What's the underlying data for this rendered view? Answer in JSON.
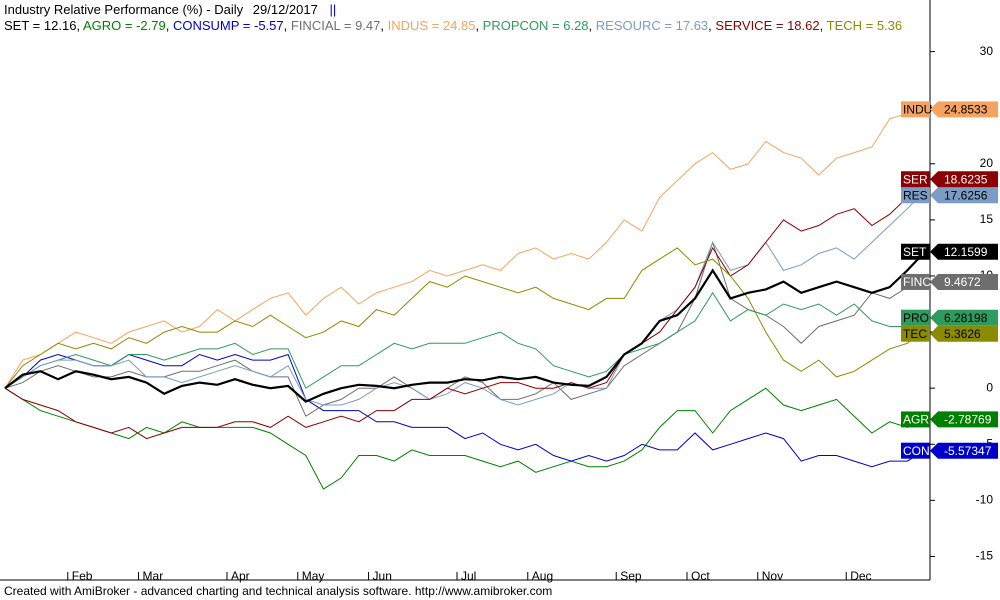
{
  "chart_data": {
    "type": "line",
    "title": "Industry Relative Performance (%) - Daily",
    "date": "29/12/2017",
    "marker": "||",
    "legend_separator": " = ",
    "legend_delimiter": ", ",
    "footer": "Created with AmiBroker - advanced charting and technical analysis software. http://www.amibroker.com",
    "categories": [
      null,
      null,
      null,
      null,
      "Feb",
      null,
      null,
      null,
      "Mar",
      null,
      null,
      null,
      null,
      "Apr",
      null,
      null,
      null,
      "May",
      null,
      null,
      null,
      "Jun",
      null,
      null,
      null,
      null,
      "Jul",
      null,
      null,
      null,
      "Aug",
      null,
      null,
      null,
      null,
      "Sep",
      null,
      null,
      null,
      "Oct",
      null,
      null,
      null,
      "Nov",
      null,
      null,
      null,
      null,
      "Dec",
      null,
      null,
      null,
      null
    ],
    "ylim": [
      -17.1,
      34.6
    ],
    "yticks": [
      -15,
      -10,
      -5,
      0,
      5,
      10,
      15,
      20,
      25,
      30
    ],
    "grid": false,
    "series": [
      {
        "name": "SET",
        "short_name": "SET",
        "legend_label": "12.16",
        "color": "#000000",
        "label_text_color": "#ffffff",
        "width": 2.2,
        "values": [
          0,
          1.2,
          1.5,
          0.8,
          1.5,
          1.2,
          0.8,
          1,
          0.5,
          -0.5,
          0.2,
          0.5,
          0.3,
          0.8,
          0.3,
          0,
          0.2,
          -1.2,
          -0.5,
          0,
          0.3,
          0.2,
          0,
          0.3,
          0.5,
          0.5,
          0.8,
          0.7,
          1,
          0.8,
          1,
          0.5,
          0.3,
          0.2,
          1,
          3,
          4,
          6,
          6.5,
          8,
          10.5,
          8,
          8.5,
          8.8,
          9.5,
          8.5,
          9,
          9.5,
          9,
          8.5,
          9,
          10.5,
          12.1599
        ]
      },
      {
        "name": "AGRO",
        "short_name": "AGR",
        "legend_label": "-2.79",
        "color": "#008000",
        "label_text_color": "#ffffff",
        "width": 1,
        "values": [
          0,
          -1,
          -2,
          -2.5,
          -3,
          -3.5,
          -4,
          -4.5,
          -3.5,
          -4,
          -3,
          -3.5,
          -3.5,
          -3.5,
          -3.5,
          -4,
          -5,
          -6,
          -9,
          -8,
          -6,
          -6,
          -6.5,
          -5.5,
          -6,
          -6,
          -6,
          -6.5,
          -7,
          -6.5,
          -7.5,
          -7,
          -6.5,
          -7,
          -7,
          -6.5,
          -5.5,
          -3.5,
          -2,
          -2,
          -4,
          -2,
          -1,
          0,
          -1.5,
          -2,
          -1.5,
          -1,
          -2.5,
          -4,
          -3,
          -3.5,
          -2.78769
        ]
      },
      {
        "name": "CONSUMP",
        "short_name": "CON",
        "legend_label": "-5.57",
        "color": "#0000cc",
        "label_text_color": "#ffffff",
        "width": 1,
        "values": [
          0,
          1,
          2.5,
          3,
          2.5,
          2,
          2,
          3,
          2.5,
          2,
          2,
          3,
          2.5,
          3,
          2.5,
          2.5,
          3,
          -1,
          -2,
          -2,
          -2,
          -3,
          -3,
          -3.5,
          -3.5,
          -3.5,
          -4.5,
          -4,
          -5,
          -5.5,
          -5,
          -6,
          -6.5,
          -6,
          -6.5,
          -6,
          -5,
          -5.5,
          -5.5,
          -4,
          -5.5,
          -5,
          -4.5,
          -4,
          -4.5,
          -6.5,
          -6,
          -6,
          -6.5,
          -7,
          -6.5,
          -6.5,
          -5.57347
        ]
      },
      {
        "name": "FINCIAL",
        "short_name": "FINC",
        "legend_label": "9.47",
        "color": "#6e6e6e",
        "label_text_color": "#ffffff",
        "width": 1,
        "values": [
          0,
          0.5,
          1.5,
          2,
          1.5,
          1,
          1,
          1.5,
          1,
          1,
          1.5,
          1.5,
          2,
          2.5,
          1.5,
          1,
          1,
          -2.5,
          -1.5,
          -1,
          0,
          0,
          1,
          0,
          -1,
          0,
          1,
          0.5,
          -1,
          -1,
          -0.5,
          0.5,
          -1,
          -0.5,
          0,
          2,
          3,
          4,
          5,
          8,
          13,
          8,
          7,
          6.5,
          5.5,
          4,
          5.5,
          6,
          6.5,
          8.5,
          8,
          9,
          9.4672
        ]
      },
      {
        "name": "INDUS",
        "short_name": "INDU",
        "legend_label": "24.85",
        "color": "#f4a460",
        "label_text_color": "#000000",
        "width": 1,
        "values": [
          0,
          2.5,
          3,
          4,
          5,
          4.5,
          4,
          5,
          5.5,
          6,
          5,
          5.5,
          7,
          6,
          7,
          8,
          8.5,
          6.5,
          8,
          9,
          7.5,
          8.5,
          9,
          9.5,
          10.5,
          10,
          10.5,
          11,
          10.5,
          12,
          12.5,
          11.5,
          12,
          11.5,
          13,
          15,
          14,
          17,
          18.5,
          20,
          21,
          19.5,
          20,
          22,
          21,
          20.5,
          19,
          20.5,
          21,
          21.5,
          24,
          24.5,
          24.8533
        ]
      },
      {
        "name": "PROPCON",
        "short_name": "PRO",
        "legend_label": "6.28",
        "color": "#2e9b5e",
        "label_text_color": "#000000",
        "width": 1,
        "values": [
          0,
          1,
          2,
          2.5,
          3,
          2.5,
          2,
          3,
          3,
          2.5,
          3,
          3.5,
          3.5,
          4,
          3,
          3.5,
          3.5,
          0,
          1,
          2,
          2,
          3,
          4,
          3.5,
          4,
          4,
          4,
          4.5,
          5,
          4,
          3.5,
          2,
          1.5,
          1,
          1.5,
          3,
          3.5,
          4,
          5,
          6,
          8.5,
          6,
          7,
          6.5,
          7.5,
          7,
          7.5,
          6.5,
          7.5,
          6,
          5.5,
          5.5,
          6.28198
        ]
      },
      {
        "name": "RESOURC",
        "short_name": "RES",
        "legend_label": "17.63",
        "color": "#7b9cc4",
        "label_text_color": "#000000",
        "width": 1,
        "values": [
          0,
          1,
          2,
          2.5,
          2.5,
          2,
          2,
          2.5,
          1,
          1,
          0.5,
          1,
          1.5,
          2,
          1.5,
          1,
          2,
          -1,
          -1.5,
          -1.5,
          -1,
          0,
          0.5,
          0,
          -1,
          -0.5,
          0.5,
          0,
          -1,
          -1.5,
          -1,
          -0.5,
          0.5,
          0,
          0,
          3,
          4,
          6,
          7,
          9,
          13,
          10.5,
          11,
          13,
          10.5,
          11,
          12,
          12.5,
          11.5,
          13,
          14.5,
          16,
          17.6256
        ]
      },
      {
        "name": "SERVICE",
        "short_name": "SER",
        "legend_label": "18.62",
        "color": "#8b0000",
        "label_text_color": "#ffffff",
        "width": 1,
        "values": [
          0,
          -1,
          -1.5,
          -2,
          -3,
          -3.5,
          -4,
          -3.5,
          -4.5,
          -4,
          -3.5,
          -3.5,
          -3.5,
          -3,
          -3,
          -3.5,
          -2.5,
          -3.5,
          -3,
          -2.5,
          -3,
          -2,
          -2,
          -1,
          -1,
          0,
          -0.5,
          0,
          0.5,
          0.5,
          0,
          0,
          0.5,
          0,
          0.5,
          3,
          4,
          5,
          7,
          9,
          12.5,
          10,
          11,
          13,
          15,
          14,
          14.5,
          15.5,
          16,
          14.5,
          15.5,
          17,
          18.6235
        ]
      },
      {
        "name": "TECH",
        "short_name": "TEC",
        "legend_label": "5.36",
        "color": "#8b8b00",
        "label_text_color": "#000000",
        "width": 1,
        "values": [
          0,
          2,
          3,
          4,
          3.5,
          4,
          3.5,
          4.5,
          4,
          5,
          5.5,
          5,
          5,
          6,
          5.5,
          6.5,
          5.5,
          4.5,
          5,
          6,
          5.5,
          7,
          6.5,
          8,
          9.5,
          9,
          10,
          9.5,
          9,
          8.5,
          9,
          8,
          7.5,
          7,
          8,
          8,
          10.5,
          11.5,
          12.5,
          11,
          11.5,
          10,
          8,
          5,
          2.5,
          1.5,
          2.5,
          1,
          1.5,
          2.5,
          3.5,
          4,
          5.3626
        ]
      }
    ]
  }
}
